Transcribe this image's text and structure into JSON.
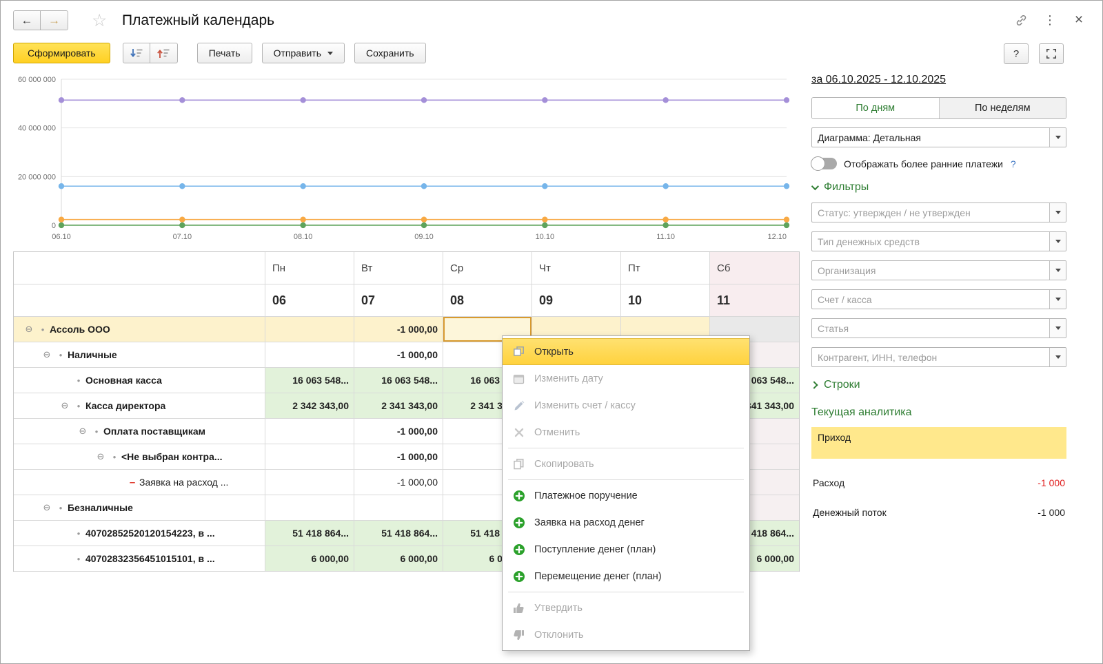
{
  "header": {
    "title": "Платежный календарь"
  },
  "toolbar": {
    "generate": "Сформировать",
    "print": "Печать",
    "send": "Отправить",
    "save": "Сохранить",
    "help": "?"
  },
  "chart_data": {
    "type": "line",
    "x_labels": [
      "06.10",
      "07.10",
      "08.10",
      "09.10",
      "10.10",
      "11.10",
      "12.10"
    ],
    "ylim": [
      0,
      60000000
    ],
    "yticks": [
      {
        "value": 0,
        "label": "0"
      },
      {
        "value": 20000000,
        "label": "20 000 000"
      },
      {
        "value": 40000000,
        "label": "40 000 000"
      },
      {
        "value": 60000000,
        "label": "60 000 000"
      }
    ],
    "grid": true,
    "legend": false,
    "series": [
      {
        "color": "#a48fd8",
        "values": [
          51418864,
          51418864,
          51418864,
          51418864,
          51418864,
          51418864,
          51418864
        ]
      },
      {
        "color": "#76b5ea",
        "values": [
          16063548,
          16063548,
          16063548,
          16063548,
          16063548,
          16063548,
          16063548
        ]
      },
      {
        "color": "#f8a944",
        "values": [
          2342343,
          2341343,
          2341343,
          2341343,
          2341343,
          2341343,
          2341343
        ]
      },
      {
        "color": "#5fa35c",
        "values": [
          6000,
          6000,
          6000,
          6000,
          6000,
          6000,
          6000
        ]
      }
    ]
  },
  "table": {
    "day_headers": [
      "Пн",
      "Вт",
      "Ср",
      "Чт",
      "Пт",
      "Сб"
    ],
    "date_headers": [
      "06",
      "07",
      "08",
      "09",
      "10",
      "11"
    ],
    "rows": [
      {
        "label": "Ассоль ООО",
        "level": 0,
        "expander": true,
        "marker": "dot",
        "bold": true,
        "row_style": "yellow",
        "cells": [
          {
            "text": ""
          },
          {
            "text": "-1 000,00"
          },
          {
            "text": "",
            "selected": true
          },
          {
            "text": ""
          },
          {
            "text": ""
          },
          {
            "text": "",
            "style": "shaded"
          }
        ]
      },
      {
        "label": "Наличные",
        "level": 1,
        "expander": true,
        "marker": "dot",
        "bold": true,
        "cells": [
          {
            "text": ""
          },
          {
            "text": "-1 000,00"
          },
          {
            "text": ""
          },
          {
            "text": ""
          },
          {
            "text": ""
          },
          {
            "text": "",
            "style": "weekend"
          }
        ]
      },
      {
        "label": "Основная касса",
        "level": 2,
        "expander": false,
        "marker": "dot",
        "bold": true,
        "cells": [
          {
            "text": "16 063 548...",
            "style": "green"
          },
          {
            "text": "16 063 548...",
            "style": "green"
          },
          {
            "text": "16 063 548...",
            "style": "green"
          },
          {
            "text": "",
            "style": "green"
          },
          {
            "text": "",
            "style": "green"
          },
          {
            "text": "16 063 548...",
            "style": "green"
          }
        ]
      },
      {
        "label": "Касса директора",
        "level": 2,
        "expander": true,
        "marker": "dot",
        "bold": true,
        "cells": [
          {
            "text": "2 342 343,00",
            "style": "green"
          },
          {
            "text": "2 341 343,00",
            "style": "green"
          },
          {
            "text": "2 341 343,00",
            "style": "green"
          },
          {
            "text": "",
            "style": "green"
          },
          {
            "text": "",
            "style": "green"
          },
          {
            "text": "2 341 343,00",
            "style": "green"
          }
        ]
      },
      {
        "label": "Оплата поставщикам",
        "level": 3,
        "expander": true,
        "marker": "dot",
        "bold": true,
        "cells": [
          {
            "text": ""
          },
          {
            "text": "-1 000,00"
          },
          {
            "text": ""
          },
          {
            "text": ""
          },
          {
            "text": ""
          },
          {
            "text": "",
            "style": "weekend"
          }
        ]
      },
      {
        "label": "<Не выбран контра...",
        "level": 4,
        "expander": true,
        "marker": "dot",
        "bold": true,
        "cells": [
          {
            "text": ""
          },
          {
            "text": "-1 000,00"
          },
          {
            "text": ""
          },
          {
            "text": ""
          },
          {
            "text": ""
          },
          {
            "text": "",
            "style": "weekend"
          }
        ]
      },
      {
        "label": "Заявка на расход ...",
        "level": 5,
        "expander": false,
        "marker": "minus",
        "bold": false,
        "cells": [
          {
            "text": ""
          },
          {
            "text": "-1 000,00"
          },
          {
            "text": ""
          },
          {
            "text": ""
          },
          {
            "text": ""
          },
          {
            "text": "",
            "style": "weekend"
          }
        ]
      },
      {
        "label": "Безналичные",
        "level": 1,
        "expander": true,
        "marker": "dot",
        "bold": true,
        "cells": [
          {
            "text": ""
          },
          {
            "text": ""
          },
          {
            "text": ""
          },
          {
            "text": ""
          },
          {
            "text": ""
          },
          {
            "text": "",
            "style": "weekend"
          }
        ]
      },
      {
        "label": "40702852520120154223, в ...",
        "level": 2,
        "expander": false,
        "marker": "dot",
        "bold": true,
        "cells": [
          {
            "text": "51 418 864...",
            "style": "green"
          },
          {
            "text": "51 418 864...",
            "style": "green"
          },
          {
            "text": "51 418 864...",
            "style": "green"
          },
          {
            "text": "",
            "style": "green"
          },
          {
            "text": "",
            "style": "green"
          },
          {
            "text": "51 418 864...",
            "style": "green"
          }
        ]
      },
      {
        "label": "40702832356451015101, в ...",
        "level": 2,
        "expander": false,
        "marker": "dot",
        "bold": true,
        "cells": [
          {
            "text": "6 000,00",
            "style": "green"
          },
          {
            "text": "6 000,00",
            "style": "green"
          },
          {
            "text": "6 000,00",
            "style": "green"
          },
          {
            "text": "",
            "style": "green"
          },
          {
            "text": "",
            "style": "green"
          },
          {
            "text": "6 000,00",
            "style": "green"
          }
        ]
      }
    ]
  },
  "context_menu": {
    "items": [
      {
        "label": "Открыть",
        "icon": "open-icon",
        "highlighted": true
      },
      {
        "label": "Изменить дату",
        "icon": "calendar-icon",
        "disabled": true
      },
      {
        "label": "Изменить счет / кассу",
        "icon": "pencil-icon",
        "disabled": true
      },
      {
        "label": "Отменить",
        "icon": "cancel-icon",
        "disabled": true
      },
      {
        "separator": true
      },
      {
        "label": "Скопировать",
        "icon": "copy-icon",
        "disabled": true
      },
      {
        "separator": true
      },
      {
        "label": "Платежное поручение",
        "icon": "plus-icon"
      },
      {
        "label": "Заявка на расход денег",
        "icon": "plus-icon"
      },
      {
        "label": "Поступление денег (план)",
        "icon": "plus-icon"
      },
      {
        "label": "Перемещение денег (план)",
        "icon": "plus-icon"
      },
      {
        "separator": true
      },
      {
        "label": "Утвердить",
        "icon": "thumbs-up-icon",
        "disabled": true
      },
      {
        "label": "Отклонить",
        "icon": "thumbs-down-icon",
        "disabled": true
      }
    ]
  },
  "right_panel": {
    "period_link": "за 06.10.2025 - 12.10.2025",
    "view_tabs": [
      {
        "label": "По дням",
        "active": true
      },
      {
        "label": "По неделям",
        "active": false
      }
    ],
    "diagram_combo": "Диаграмма: Детальная",
    "earlier_payments": {
      "label": "Отображать более ранние платежи",
      "state": "off",
      "help": "?"
    },
    "filters": {
      "title": "Фильтры",
      "fields": [
        "Статус: утвержден / не утвержден",
        "Тип денежных средств",
        "Организация",
        "Счет / касса",
        "Статья",
        "Контрагент, ИНН, телефон"
      ]
    },
    "rows_section": {
      "title": "Строки"
    },
    "analytics": {
      "title": "Текущая аналитика",
      "items": [
        {
          "label": "Приход",
          "value": "",
          "highlighted": true
        },
        {
          "label": "Расход",
          "value": "-1 000",
          "negative": true
        },
        {
          "label": "Денежный поток",
          "value": "-1 000"
        }
      ]
    }
  }
}
